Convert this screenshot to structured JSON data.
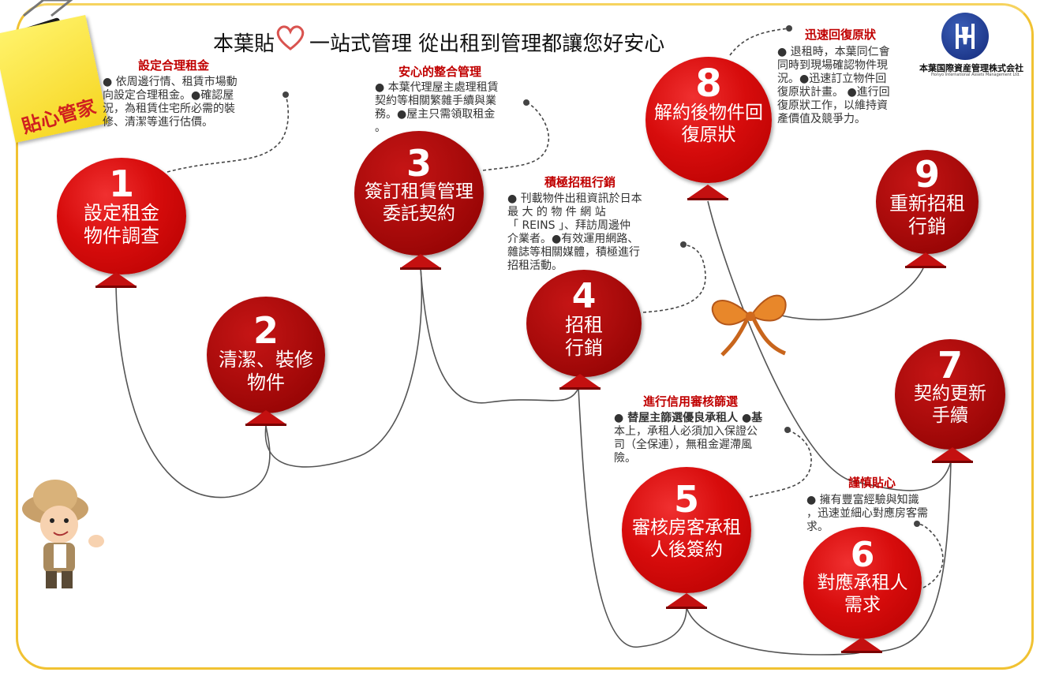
{
  "title": {
    "part1": "本葉貼",
    "part2": "一站式管理  從出租到管理都讓您好安心"
  },
  "note": "貼心管家",
  "logo": {
    "name": "本葉国際資産管理株式会社",
    "sub": "Honyo International Assets Management Ltd."
  },
  "steps": [
    {
      "num": "1",
      "label1": "設定租金",
      "label2": "物件調查"
    },
    {
      "num": "2",
      "label1": "清潔、裝修",
      "label2": "物件"
    },
    {
      "num": "3",
      "label1": "簽訂租賃管理",
      "label2": "委託契約"
    },
    {
      "num": "4",
      "label1": "招租",
      "label2": "行銷"
    },
    {
      "num": "5",
      "label1": "審核房客承租",
      "label2": "人後簽約"
    },
    {
      "num": "6",
      "label1": "對應承租人",
      "label2": "需求"
    },
    {
      "num": "7",
      "label1": "契約更新",
      "label2": "手續"
    },
    {
      "num": "8",
      "label1": "解約後物件回",
      "label2": "復原狀"
    },
    {
      "num": "9",
      "label1": "重新招租",
      "label2": "行銷"
    }
  ],
  "callouts": [
    {
      "heading": "設定合理租金",
      "lines": [
        "● 依周邊行情、租賃市場動",
        "向設定合理租金。●確認屋",
        "況，為租賃住宅所必需的裝",
        "修、清潔等進行估價。"
      ]
    },
    {
      "heading": "安心的整合管理",
      "lines": [
        "● 本葉代理屋主處理租賃",
        "契約等相關繁雜手續與業",
        "務。●屋主只需領取租金",
        "。"
      ]
    },
    {
      "heading": "積極招租行銷",
      "lines": [
        "● 刊載物件出租資訊於日本",
        "最 大 的 物 件 網 站",
        "「 REINS 」、拜訪周邊仲",
        "介業者。●有效運用網路、",
        "雜誌等相關媒體，積極進行",
        "招租活動。"
      ]
    },
    {
      "heading": "進行信用審核篩選",
      "lines": [
        "● 替屋主篩選優良承租人 ●基",
        "本上，承租人必須加入保證公",
        "司（全保連），無租金遲滯風",
        "險。"
      ]
    },
    {
      "heading": "謹慎貼心",
      "lines": [
        "● 擁有豐富經驗與知識",
        "，迅速並細心對應房客需",
        "求。"
      ]
    },
    {
      "heading": "迅速回復原狀",
      "lines": [
        "● 退租時，本葉同仁會",
        "同時到現場確認物件現",
        "況。●迅速訂立物件回",
        "復原狀計畫。 ●進行回",
        "復原狀工作，以維持資",
        "產價值及競爭力。"
      ]
    }
  ],
  "colors": {
    "accent": "#c00000",
    "balloon": "#d70c0c",
    "frame": "#f1c232"
  }
}
